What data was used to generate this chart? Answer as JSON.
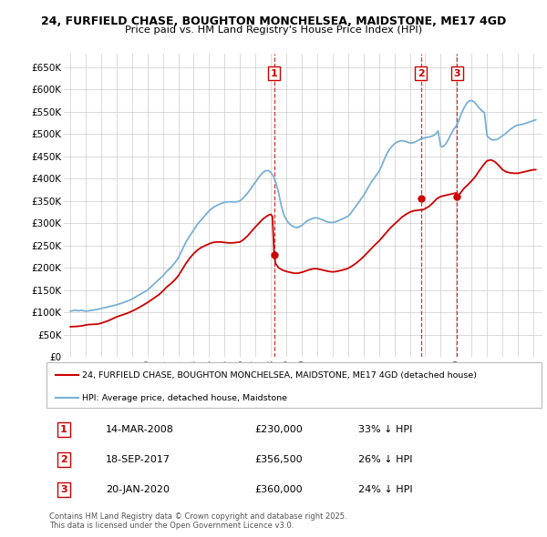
{
  "title_line1": "24, FURFIELD CHASE, BOUGHTON MONCHELSEA, MAIDSTONE, ME17 4GD",
  "title_line2": "Price paid vs. HM Land Registry's House Price Index (HPI)",
  "ylim": [
    0,
    680000
  ],
  "yticks": [
    0,
    50000,
    100000,
    150000,
    200000,
    250000,
    300000,
    350000,
    400000,
    450000,
    500000,
    550000,
    600000,
    650000
  ],
  "ytick_labels": [
    "£0",
    "£50K",
    "£100K",
    "£150K",
    "£200K",
    "£250K",
    "£300K",
    "£350K",
    "£400K",
    "£450K",
    "£500K",
    "£550K",
    "£600K",
    "£650K"
  ],
  "xlim_start": 1994.6,
  "xlim_end": 2025.6,
  "xtick_years": [
    1995,
    1996,
    1997,
    1998,
    1999,
    2000,
    2001,
    2002,
    2003,
    2004,
    2005,
    2006,
    2007,
    2008,
    2009,
    2010,
    2011,
    2012,
    2013,
    2014,
    2015,
    2016,
    2017,
    2018,
    2019,
    2020,
    2021,
    2022,
    2023,
    2024,
    2025
  ],
  "transaction_dates": [
    2008.21,
    2017.72,
    2020.05
  ],
  "transaction_prices": [
    230000,
    356500,
    360000
  ],
  "transaction_labels": [
    "1",
    "2",
    "3"
  ],
  "transaction_annotations": [
    {
      "num": "1",
      "date": "14-MAR-2008",
      "price": "£230,000",
      "desc": "33% ↓ HPI"
    },
    {
      "num": "2",
      "date": "18-SEP-2017",
      "price": "£356,500",
      "desc": "26% ↓ HPI"
    },
    {
      "num": "3",
      "date": "20-JAN-2020",
      "price": "£360,000",
      "desc": "24% ↓ HPI"
    }
  ],
  "legend_line1": "24, FURFIELD CHASE, BOUGHTON MONCHELSEA, MAIDSTONE, ME17 4GD (detached house)",
  "legend_line2": "HPI: Average price, detached house, Maidstone",
  "footnote": "Contains HM Land Registry data © Crown copyright and database right 2025.\nThis data is licensed under the Open Government Licence v3.0.",
  "line_color_red": "#cc0000",
  "line_color_blue": "#7ab0d4",
  "background_color": "#ffffff",
  "grid_color": "#cccccc",
  "hpi_x": [
    1995.0,
    1995.08,
    1995.17,
    1995.25,
    1995.33,
    1995.42,
    1995.5,
    1995.58,
    1995.67,
    1995.75,
    1995.83,
    1995.92,
    1996.0,
    1996.08,
    1996.17,
    1996.25,
    1996.33,
    1996.42,
    1996.5,
    1996.58,
    1996.67,
    1996.75,
    1996.83,
    1996.92,
    1997.0,
    1997.25,
    1997.5,
    1997.75,
    1998.0,
    1998.25,
    1998.5,
    1998.75,
    1999.0,
    1999.25,
    1999.5,
    1999.75,
    2000.0,
    2000.25,
    2000.5,
    2000.75,
    2001.0,
    2001.25,
    2001.5,
    2001.75,
    2002.0,
    2002.25,
    2002.5,
    2002.75,
    2003.0,
    2003.25,
    2003.5,
    2003.75,
    2004.0,
    2004.25,
    2004.5,
    2004.75,
    2005.0,
    2005.25,
    2005.5,
    2005.75,
    2006.0,
    2006.25,
    2006.5,
    2006.75,
    2007.0,
    2007.17,
    2007.33,
    2007.5,
    2007.67,
    2007.83,
    2008.0,
    2008.17,
    2008.33,
    2008.5,
    2008.67,
    2008.83,
    2009.0,
    2009.17,
    2009.33,
    2009.5,
    2009.67,
    2009.83,
    2010.0,
    2010.17,
    2010.33,
    2010.5,
    2010.67,
    2010.83,
    2011.0,
    2011.17,
    2011.33,
    2011.5,
    2011.67,
    2011.83,
    2012.0,
    2012.17,
    2012.33,
    2012.5,
    2012.67,
    2012.83,
    2013.0,
    2013.17,
    2013.33,
    2013.5,
    2013.67,
    2013.83,
    2014.0,
    2014.17,
    2014.33,
    2014.5,
    2014.67,
    2014.83,
    2015.0,
    2015.17,
    2015.33,
    2015.5,
    2015.67,
    2015.83,
    2016.0,
    2016.17,
    2016.33,
    2016.5,
    2016.67,
    2016.83,
    2017.0,
    2017.17,
    2017.33,
    2017.5,
    2017.67,
    2017.83,
    2018.0,
    2018.17,
    2018.33,
    2018.5,
    2018.67,
    2018.83,
    2019.0,
    2019.17,
    2019.33,
    2019.5,
    2019.67,
    2019.83,
    2020.0,
    2020.17,
    2020.33,
    2020.5,
    2020.67,
    2020.83,
    2021.0,
    2021.17,
    2021.33,
    2021.5,
    2021.67,
    2021.83,
    2022.0,
    2022.17,
    2022.33,
    2022.5,
    2022.67,
    2022.83,
    2023.0,
    2023.17,
    2023.33,
    2023.5,
    2023.67,
    2023.83,
    2024.0,
    2024.17,
    2024.33,
    2024.5,
    2024.67,
    2024.83,
    2025.0,
    2025.17
  ],
  "hpi_y": [
    103000,
    103500,
    104000,
    104500,
    105000,
    104500,
    104000,
    104000,
    104500,
    105000,
    104000,
    103500,
    103000,
    103000,
    103500,
    104000,
    104500,
    105000,
    105500,
    106000,
    106500,
    107000,
    107500,
    108000,
    109000,
    111000,
    113000,
    115000,
    117000,
    120000,
    123000,
    126000,
    130000,
    135000,
    140000,
    145000,
    150000,
    158000,
    166000,
    174000,
    182000,
    192000,
    200000,
    210000,
    222000,
    240000,
    258000,
    272000,
    285000,
    298000,
    308000,
    318000,
    328000,
    335000,
    340000,
    344000,
    347000,
    348000,
    348000,
    348000,
    350000,
    358000,
    368000,
    380000,
    392000,
    400000,
    408000,
    414000,
    418000,
    418000,
    414000,
    405000,
    390000,
    368000,
    340000,
    320000,
    308000,
    300000,
    295000,
    292000,
    290000,
    292000,
    295000,
    300000,
    305000,
    308000,
    310000,
    312000,
    312000,
    310000,
    308000,
    305000,
    303000,
    302000,
    302000,
    303000,
    305000,
    308000,
    310000,
    313000,
    316000,
    322000,
    330000,
    338000,
    346000,
    354000,
    362000,
    372000,
    382000,
    392000,
    400000,
    408000,
    416000,
    428000,
    442000,
    455000,
    465000,
    472000,
    478000,
    482000,
    484000,
    485000,
    484000,
    482000,
    480000,
    480000,
    482000,
    485000,
    488000,
    490000,
    492000,
    493000,
    494000,
    496000,
    500000,
    507000,
    472000,
    472000,
    478000,
    488000,
    500000,
    510000,
    518000,
    530000,
    545000,
    558000,
    568000,
    574000,
    575000,
    572000,
    565000,
    558000,
    552000,
    548000,
    496000,
    490000,
    487000,
    487000,
    488000,
    492000,
    496000,
    500000,
    505000,
    510000,
    514000,
    518000,
    520000,
    521000,
    522000,
    524000,
    526000,
    528000,
    530000,
    532000
  ],
  "prop_x": [
    1995.0,
    1995.25,
    1995.5,
    1995.75,
    1996.0,
    1996.25,
    1996.5,
    1996.75,
    1997.0,
    1997.25,
    1997.5,
    1997.75,
    1998.0,
    1998.25,
    1998.5,
    1998.75,
    1999.0,
    1999.25,
    1999.5,
    1999.75,
    2000.0,
    2000.25,
    2000.5,
    2000.75,
    2001.0,
    2001.25,
    2001.5,
    2001.75,
    2002.0,
    2002.25,
    2002.5,
    2002.75,
    2003.0,
    2003.25,
    2003.5,
    2003.75,
    2004.0,
    2004.25,
    2004.5,
    2004.75,
    2005.0,
    2005.25,
    2005.5,
    2005.75,
    2006.0,
    2006.25,
    2006.5,
    2006.75,
    2007.0,
    2007.17,
    2007.33,
    2007.5,
    2007.67,
    2007.83,
    2008.0,
    2008.1,
    2008.21,
    2008.3,
    2008.5,
    2008.7,
    2008.83,
    2009.0,
    2009.25,
    2009.5,
    2009.75,
    2010.0,
    2010.25,
    2010.5,
    2010.75,
    2011.0,
    2011.25,
    2011.5,
    2011.75,
    2012.0,
    2012.25,
    2012.5,
    2012.75,
    2013.0,
    2013.25,
    2013.5,
    2013.75,
    2014.0,
    2014.25,
    2014.5,
    2014.75,
    2015.0,
    2015.25,
    2015.5,
    2015.75,
    2016.0,
    2016.25,
    2016.5,
    2016.75,
    2017.0,
    2017.25,
    2017.5,
    2017.67,
    2017.72,
    2017.83,
    2018.0,
    2018.25,
    2018.5,
    2018.75,
    2019.0,
    2019.25,
    2019.5,
    2019.75,
    2020.0,
    2020.05,
    2020.17,
    2020.33,
    2020.5,
    2020.75,
    2021.0,
    2021.25,
    2021.5,
    2021.75,
    2022.0,
    2022.25,
    2022.5,
    2022.75,
    2023.0,
    2023.25,
    2023.5,
    2023.75,
    2024.0,
    2024.25,
    2024.5,
    2024.75,
    2025.0,
    2025.17
  ],
  "prop_y": [
    68000,
    68500,
    69000,
    70000,
    72000,
    73000,
    73500,
    74000,
    76000,
    79000,
    82000,
    86000,
    90000,
    93000,
    96000,
    99000,
    103000,
    107000,
    112000,
    117000,
    122000,
    128000,
    134000,
    140000,
    148000,
    157000,
    164000,
    172000,
    182000,
    196000,
    210000,
    222000,
    232000,
    240000,
    246000,
    250000,
    254000,
    257000,
    258000,
    258000,
    257000,
    256000,
    256000,
    257000,
    258000,
    264000,
    272000,
    282000,
    292000,
    298000,
    304000,
    310000,
    314000,
    318000,
    320000,
    315000,
    230000,
    210000,
    200000,
    196000,
    194000,
    192000,
    190000,
    188000,
    188000,
    190000,
    193000,
    196000,
    198000,
    198000,
    196000,
    194000,
    192000,
    191000,
    192000,
    194000,
    196000,
    199000,
    204000,
    210000,
    217000,
    225000,
    234000,
    243000,
    252000,
    260000,
    270000,
    280000,
    290000,
    298000,
    306000,
    314000,
    320000,
    325000,
    328000,
    329000,
    330000,
    330000,
    330000,
    333000,
    338000,
    346000,
    355000,
    360000,
    362000,
    364000,
    366000,
    368000,
    360000,
    363000,
    370000,
    378000,
    386000,
    395000,
    405000,
    418000,
    430000,
    440000,
    442000,
    438000,
    430000,
    420000,
    415000,
    413000,
    412000,
    412000,
    414000,
    416000,
    418000,
    420000,
    420000
  ]
}
